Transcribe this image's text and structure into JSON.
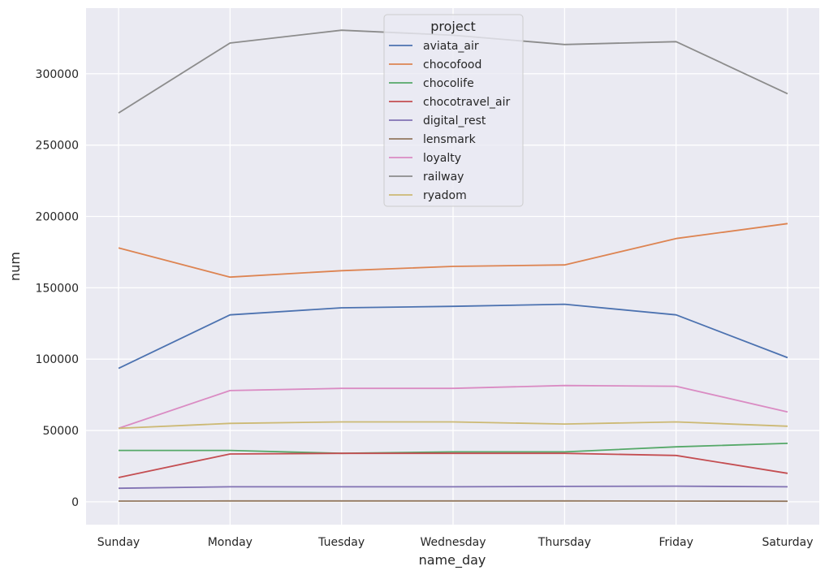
{
  "chart_data": {
    "type": "line",
    "xlabel": "name_day",
    "ylabel": "num",
    "categories": [
      "Sunday",
      "Monday",
      "Tuesday",
      "Wednesday",
      "Thursday",
      "Friday",
      "Saturday"
    ],
    "yticks": [
      0,
      50000,
      100000,
      150000,
      200000,
      250000,
      300000
    ],
    "ytick_labels": [
      "0",
      "50000",
      "100000",
      "150000",
      "200000",
      "250000",
      "300000"
    ],
    "ylim": [
      -16000,
      346000
    ],
    "grid": true,
    "legend_title": "project",
    "legend_position": "top-center",
    "series": [
      {
        "name": "aviata_air",
        "color": "#4c72b0",
        "values": [
          93500,
          131000,
          136000,
          137000,
          138500,
          131000,
          101000
        ]
      },
      {
        "name": "chocofood",
        "color": "#dd8452",
        "values": [
          178000,
          157500,
          162000,
          165000,
          166000,
          184500,
          195000
        ]
      },
      {
        "name": "chocolife",
        "color": "#55a868",
        "values": [
          36000,
          36000,
          34000,
          35000,
          35000,
          38500,
          41000
        ]
      },
      {
        "name": "chocotravel_air",
        "color": "#c44e52",
        "values": [
          17000,
          33500,
          34000,
          34000,
          34000,
          32500,
          20000
        ]
      },
      {
        "name": "digital_rest",
        "color": "#8172b3",
        "values": [
          9500,
          10500,
          10500,
          10500,
          10800,
          11000,
          10500
        ]
      },
      {
        "name": "lensmark",
        "color": "#937860",
        "values": [
          500,
          600,
          600,
          600,
          600,
          500,
          400
        ]
      },
      {
        "name": "loyalty",
        "color": "#da8bc3",
        "values": [
          51500,
          78000,
          79500,
          79500,
          81500,
          81000,
          63000
        ]
      },
      {
        "name": "railway",
        "color": "#8c8c8c",
        "values": [
          272500,
          321500,
          330500,
          327000,
          320500,
          322500,
          286000
        ]
      },
      {
        "name": "ryadom",
        "color": "#ccb974",
        "values": [
          51500,
          55000,
          56000,
          56000,
          54500,
          56000,
          53000
        ]
      }
    ]
  }
}
